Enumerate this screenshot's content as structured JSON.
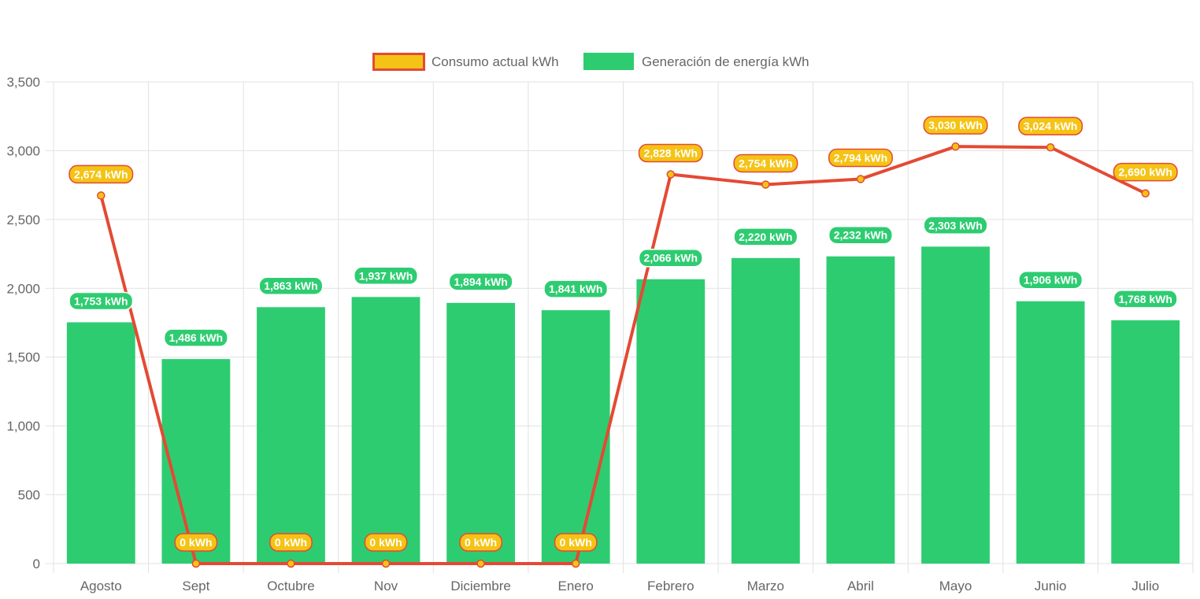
{
  "chart_data": {
    "type": "bar",
    "categories": [
      "Agosto",
      "Sept",
      "Octubre",
      "Nov",
      "Diciembre",
      "Enero",
      "Febrero",
      "Marzo",
      "Abril",
      "Mayo",
      "Junio",
      "Julio"
    ],
    "series": [
      {
        "name": "Consumo actual kWh",
        "type": "line",
        "values": [
          2674,
          0,
          0,
          0,
          0,
          0,
          2828,
          2754,
          2794,
          3030,
          3024,
          2690
        ],
        "labels": [
          "2,674 kWh",
          "0 kWh",
          "0 kWh",
          "0 kWh",
          "0 kWh",
          "0 kWh",
          "2,828 kWh",
          "2,754 kWh",
          "2,794 kWh",
          "3,030 kWh",
          "3,024 kWh",
          "2,690 kWh"
        ],
        "color": "#e34a34",
        "fill": "#f5c315"
      },
      {
        "name": "Generación de energía kWh",
        "type": "bar",
        "values": [
          1753,
          1486,
          1863,
          1937,
          1894,
          1841,
          2066,
          2220,
          2232,
          2303,
          1906,
          1768
        ],
        "labels": [
          "1,753 kWh",
          "1,486 kWh",
          "1,863 kWh",
          "1,937 kWh",
          "1,894 kWh",
          "1,841 kWh",
          "2,066 kWh",
          "2,220 kWh",
          "2,232 kWh",
          "2,303 kWh",
          "1,906 kWh",
          "1,768 kWh"
        ],
        "color": "#2ecc71"
      }
    ],
    "ylim": [
      0,
      3500
    ],
    "yticks": [
      0,
      500,
      1000,
      1500,
      2000,
      2500,
      3000,
      3500
    ],
    "ytick_labels": [
      "0",
      "500",
      "1,000",
      "1,500",
      "2,000",
      "2,500",
      "3,000",
      "3,500"
    ],
    "title": "",
    "xlabel": "",
    "ylabel": "",
    "grid": true,
    "legend": "top-center"
  }
}
